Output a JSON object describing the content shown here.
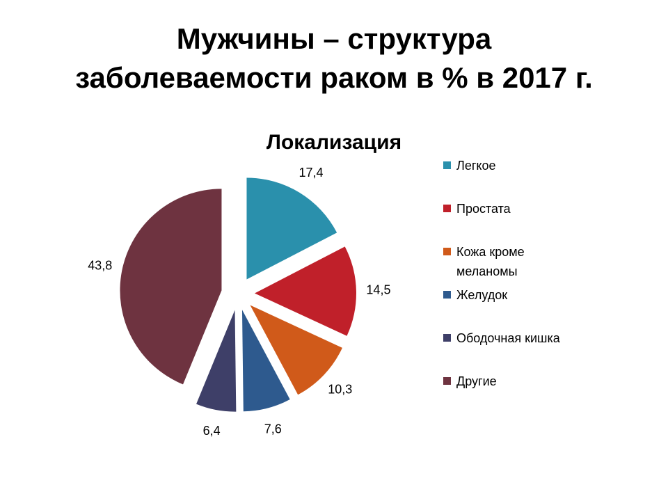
{
  "chart_data": {
    "type": "pie",
    "title": "Мужчины – структура\nзаболеваемости раком в % в 2017 г.",
    "subtitle": "Локализация",
    "categories": [
      "Легкое",
      "Простата",
      "Кожа кроме меланомы",
      "Желудок",
      "Ободочная кишка",
      "Другие"
    ],
    "values": [
      17.4,
      14.5,
      10.3,
      7.6,
      6.4,
      43.8
    ],
    "value_labels": [
      "17,4",
      "14,5",
      "10,3",
      "7,6",
      "6,4",
      "43,8"
    ],
    "colors": [
      "#2a90ac",
      "#c0202a",
      "#d05a1a",
      "#2e5a8e",
      "#3e3f68",
      "#6e3340"
    ],
    "legend": "right"
  }
}
